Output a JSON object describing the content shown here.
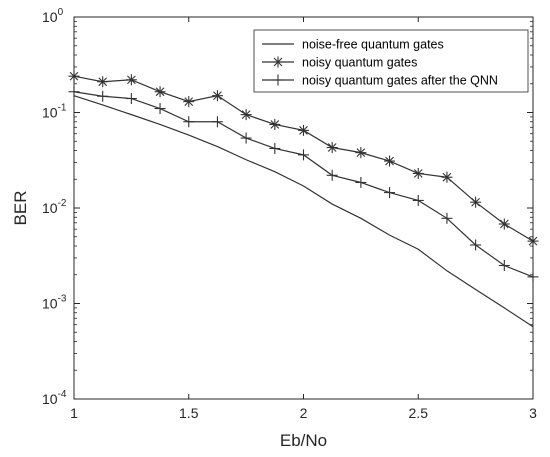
{
  "chart_data": {
    "type": "line",
    "title": "",
    "xlabel": "Eb/No",
    "ylabel": "BER",
    "xlim": [
      1,
      3
    ],
    "ylim": [
      0.0001,
      1
    ],
    "yscale": "log",
    "grid": false,
    "legend_position": "top-right",
    "x_ticks": [
      1,
      1.5,
      2,
      2.5,
      3
    ],
    "x_tick_labels": [
      "1",
      "1.5",
      "2",
      "2.5",
      "3"
    ],
    "y_ticks": [
      0.0001,
      0.001,
      0.01,
      0.1,
      1
    ],
    "y_tick_labels": [
      {
        "base": "10",
        "exp": "-4"
      },
      {
        "base": "10",
        "exp": "-3"
      },
      {
        "base": "10",
        "exp": "-2"
      },
      {
        "base": "10",
        "exp": "-1"
      },
      {
        "base": "10",
        "exp": "0"
      }
    ],
    "series": [
      {
        "name": "noise-free quantum gates",
        "marker": "none",
        "color": "#333333",
        "x": [
          1,
          1.125,
          1.25,
          1.375,
          1.5,
          1.625,
          1.75,
          1.875,
          2,
          2.125,
          2.25,
          2.375,
          2.5,
          2.625,
          2.75,
          2.875,
          3
        ],
        "y": [
          0.15,
          0.12,
          0.095,
          0.075,
          0.058,
          0.044,
          0.032,
          0.024,
          0.017,
          0.011,
          0.0078,
          0.0052,
          0.0037,
          0.0022,
          0.0014,
          0.0009,
          0.00057
        ]
      },
      {
        "name": "noisy quantum gates",
        "marker": "star",
        "color": "#333333",
        "x": [
          1,
          1.125,
          1.25,
          1.375,
          1.5,
          1.625,
          1.75,
          1.875,
          2,
          2.125,
          2.25,
          2.375,
          2.5,
          2.625,
          2.75,
          2.875,
          3
        ],
        "y": [
          0.24,
          0.21,
          0.22,
          0.165,
          0.13,
          0.15,
          0.095,
          0.075,
          0.065,
          0.043,
          0.038,
          0.031,
          0.023,
          0.021,
          0.0115,
          0.0068,
          0.0045
        ]
      },
      {
        "name": "noisy quantum gates after the QNN",
        "marker": "plus",
        "color": "#333333",
        "x": [
          1,
          1.125,
          1.25,
          1.375,
          1.5,
          1.625,
          1.75,
          1.875,
          2,
          2.125,
          2.25,
          2.375,
          2.5,
          2.625,
          2.75,
          2.875,
          3
        ],
        "y": [
          0.165,
          0.148,
          0.14,
          0.11,
          0.08,
          0.08,
          0.054,
          0.042,
          0.036,
          0.022,
          0.0185,
          0.0145,
          0.012,
          0.0078,
          0.0041,
          0.0025,
          0.0019
        ]
      }
    ]
  }
}
